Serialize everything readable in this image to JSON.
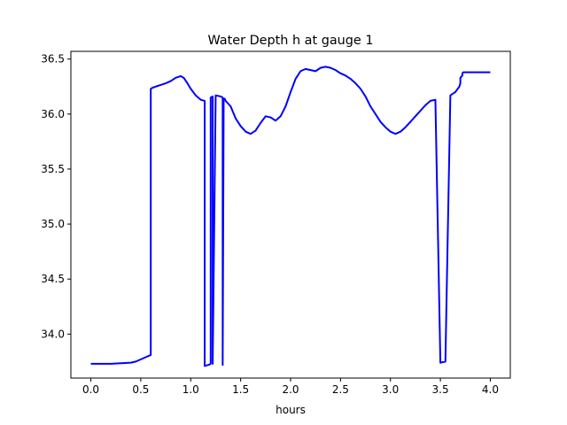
{
  "chart_data": {
    "type": "line",
    "title": "Water Depth h at gauge 1",
    "xlabel": "hours",
    "ylabel": "",
    "xlim": [
      -0.2,
      4.2
    ],
    "ylim": [
      33.6,
      36.57
    ],
    "grid": false,
    "x_ticks": [
      0.0,
      0.5,
      1.0,
      1.5,
      2.0,
      2.5,
      3.0,
      3.5,
      4.0
    ],
    "x_tick_labels": [
      "0.0",
      "0.5",
      "1.0",
      "1.5",
      "2.0",
      "2.5",
      "3.0",
      "3.5",
      "4.0"
    ],
    "y_ticks": [
      34.0,
      34.5,
      35.0,
      35.5,
      36.0,
      36.5
    ],
    "y_tick_labels": [
      "34.0",
      "34.5",
      "35.0",
      "35.5",
      "36.0",
      "36.5"
    ],
    "series": [
      {
        "color": "#0000ff",
        "x": [
          0.0,
          0.1,
          0.2,
          0.3,
          0.4,
          0.45,
          0.5,
          0.55,
          0.6,
          0.6,
          0.62,
          0.65,
          0.7,
          0.75,
          0.8,
          0.85,
          0.9,
          0.93,
          0.96,
          1.0,
          1.05,
          1.1,
          1.14,
          1.14,
          1.18,
          1.2,
          1.2,
          1.22,
          1.22,
          1.25,
          1.3,
          1.32,
          1.32,
          1.33,
          1.34,
          1.34,
          1.35,
          1.4,
          1.45,
          1.5,
          1.55,
          1.6,
          1.65,
          1.7,
          1.75,
          1.8,
          1.85,
          1.9,
          1.95,
          2.0,
          2.05,
          2.1,
          2.15,
          2.2,
          2.25,
          2.3,
          2.35,
          2.4,
          2.45,
          2.5,
          2.55,
          2.6,
          2.65,
          2.7,
          2.75,
          2.8,
          2.85,
          2.9,
          2.95,
          3.0,
          3.05,
          3.1,
          3.15,
          3.2,
          3.25,
          3.3,
          3.35,
          3.4,
          3.45,
          3.5,
          3.55,
          3.6,
          3.65,
          3.69,
          3.7,
          3.7,
          3.72,
          3.72,
          3.73,
          3.75,
          3.8,
          3.85,
          3.9,
          3.95,
          4.0
        ],
        "y": [
          33.73,
          33.73,
          33.73,
          33.735,
          33.74,
          33.75,
          33.77,
          33.79,
          33.81,
          36.23,
          36.24,
          36.25,
          36.265,
          36.28,
          36.3,
          36.33,
          36.345,
          36.33,
          36.29,
          36.23,
          36.17,
          36.13,
          36.12,
          33.71,
          33.72,
          33.73,
          36.15,
          36.16,
          33.73,
          36.17,
          36.16,
          36.15,
          33.72,
          36.14,
          36.13,
          36.14,
          36.12,
          36.07,
          35.96,
          35.89,
          35.84,
          35.82,
          35.85,
          35.92,
          35.98,
          35.97,
          35.94,
          35.98,
          36.07,
          36.2,
          36.32,
          36.39,
          36.41,
          36.4,
          36.39,
          36.42,
          36.43,
          36.42,
          36.4,
          36.37,
          36.35,
          36.32,
          36.28,
          36.23,
          36.16,
          36.07,
          36.0,
          35.93,
          35.88,
          35.84,
          35.82,
          35.84,
          35.88,
          35.93,
          35.98,
          36.03,
          36.08,
          36.12,
          36.13,
          33.74,
          33.75,
          36.17,
          36.2,
          36.25,
          36.28,
          36.33,
          36.35,
          36.37,
          36.38,
          36.38,
          36.38,
          36.38,
          36.38,
          36.38,
          36.38
        ]
      }
    ]
  }
}
